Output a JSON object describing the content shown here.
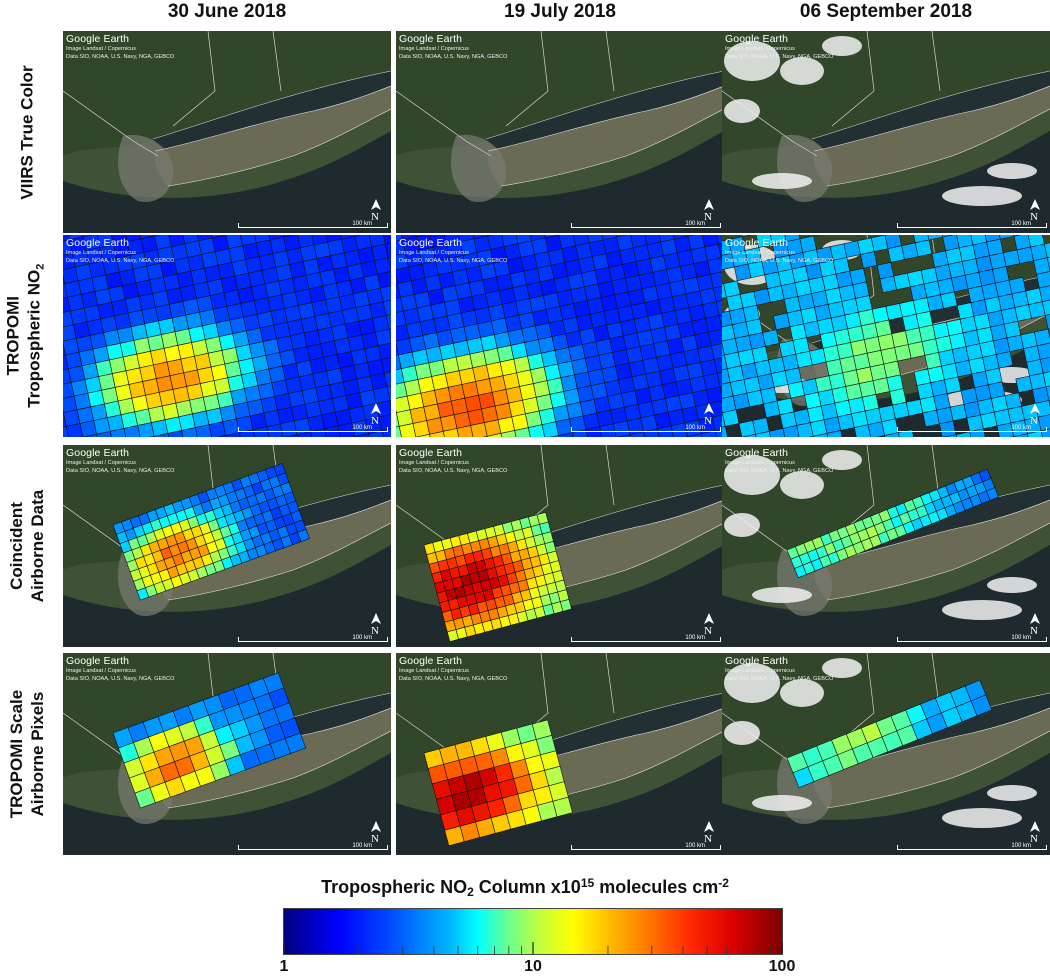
{
  "columns": [
    {
      "label": "30 June 2018"
    },
    {
      "label": "19 July 2018"
    },
    {
      "label": "06 September 2018"
    }
  ],
  "rows": [
    {
      "lines": [
        "VIIRS True Color"
      ]
    },
    {
      "lines": [
        "TROPOMI",
        "Tropospheric NO2"
      ]
    },
    {
      "lines": [
        "Coincident",
        "Airborne Data"
      ]
    },
    {
      "lines": [
        "TROPOMI Scale",
        "Airborne Pixels"
      ]
    }
  ],
  "panel": {
    "logo": "Google Earth",
    "credit_line1": "Image Landsat / Copernicus",
    "credit_line2": "Data SIO, NOAA, U.S. Navy, NGA, GEBCO",
    "scale_label": "100 km",
    "north_label": "N"
  },
  "colorbar": {
    "title_pre": "Tropospheric NO",
    "title_sub": "2",
    "title_mid": " Column x10",
    "title_sup_exp": "15",
    "title_post": " molecules cm",
    "title_sup_unit": "-2",
    "scale": "log",
    "min": 1,
    "max": 100,
    "tick_labels": [
      {
        "value": 1,
        "label": "1"
      },
      {
        "value": 10,
        "label": "10"
      },
      {
        "value": 100,
        "label": "100"
      }
    ],
    "colormap": [
      "#00007f",
      "#0000ff",
      "#00b4ff",
      "#00ffff",
      "#bfff40",
      "#ffff00",
      "#ff7800",
      "#dc0000",
      "#7f0000"
    ]
  },
  "colors": {
    "land": "#3f5236",
    "water": "#1e2a2e",
    "border": "#d8d8d8"
  }
}
